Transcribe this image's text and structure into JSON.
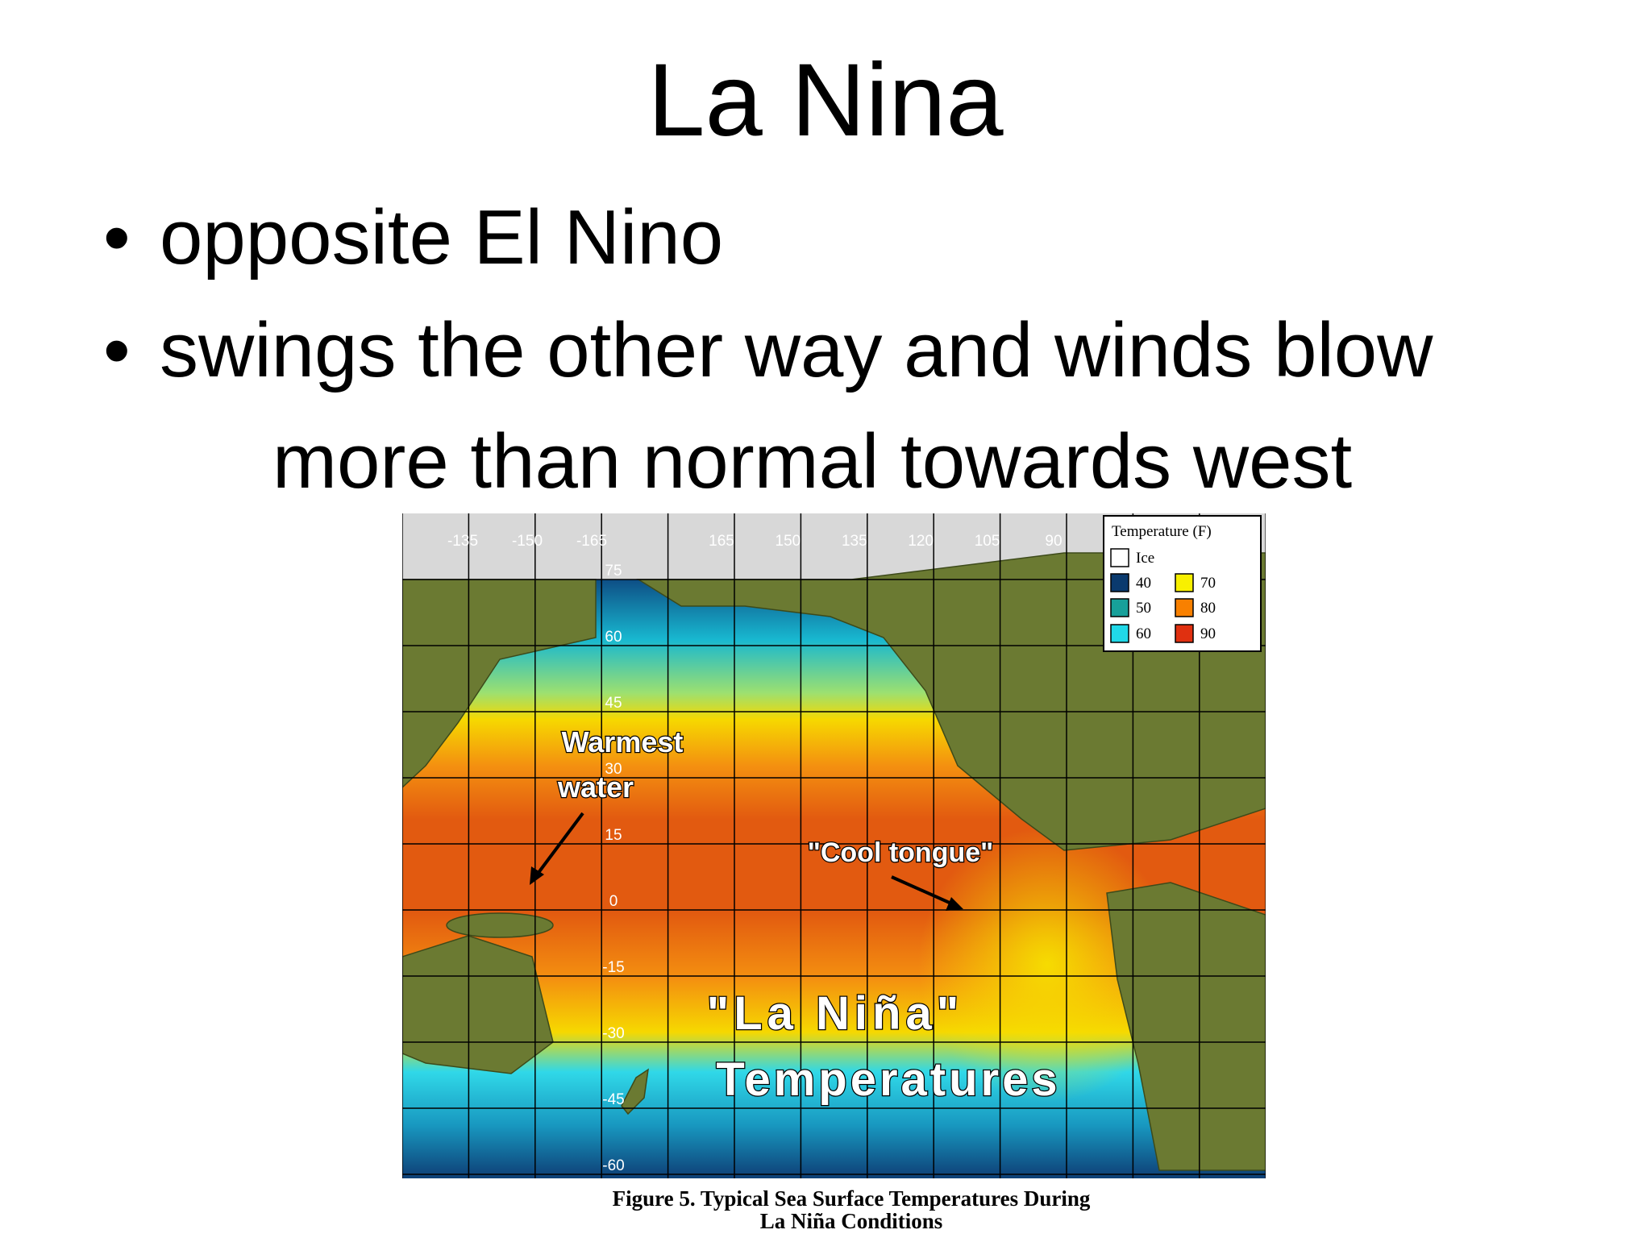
{
  "title": "La Nina",
  "bullets": [
    {
      "lines": [
        "opposite El Nino"
      ]
    },
    {
      "lines": [
        "swings the other way and winds blow",
        "more than normal towards west"
      ]
    }
  ],
  "figure": {
    "longitudes": [
      "-135",
      "-150",
      "-165",
      "165",
      "150",
      "135",
      "120",
      "105",
      "90"
    ],
    "latitudes": [
      "75",
      "60",
      "45",
      "30",
      "15",
      "0",
      "-15",
      "-30",
      "-45",
      "-60"
    ],
    "legend": {
      "title": "Temperature (F)",
      "entries": [
        "Ice",
        "40",
        "50",
        "60",
        "70",
        "80",
        "90"
      ]
    },
    "annotations": {
      "warmest": [
        "Warmest",
        "water"
      ],
      "cool_tongue": "\"Cool tongue\"",
      "la_nina": "\"La Niña\"",
      "temperatures": "Temperatures"
    },
    "caption": [
      "Figure 5. Typical Sea Surface Temperatures During",
      "La Niña Conditions"
    ]
  }
}
